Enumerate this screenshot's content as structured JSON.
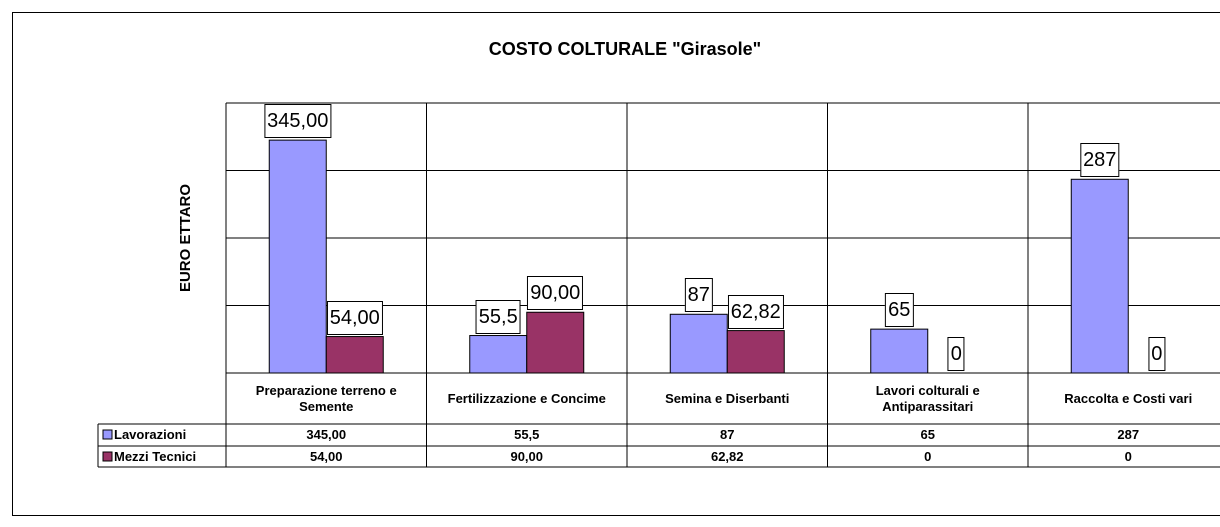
{
  "chart_data": {
    "type": "bar",
    "title": "COSTO COLTURALE \"Girasole\"",
    "y_label": "EURO ETTARO",
    "categories": [
      "Preparazione terreno e Semente",
      "Fertilizzazione e Concime",
      "Semina e Diserbanti",
      "Lavori colturali e Antiparassitari",
      "Raccolta e Costi vari"
    ],
    "series": [
      {
        "name": "Lavorazioni",
        "color": "#9999ff",
        "values": [
          345,
          55.5,
          87,
          65,
          287
        ],
        "value_labels": [
          "345,00",
          "55,5",
          "87",
          "65",
          "287"
        ]
      },
      {
        "name": "Mezzi Tecnici",
        "color": "#993366",
        "values": [
          54,
          90,
          62.82,
          0,
          0
        ],
        "value_labels": [
          "54,00",
          "90,00",
          "62,82",
          "0",
          "0"
        ]
      }
    ],
    "ylim": [
      0,
      400
    ],
    "yticks": [
      0,
      100,
      200,
      300,
      400
    ],
    "grid": true
  }
}
